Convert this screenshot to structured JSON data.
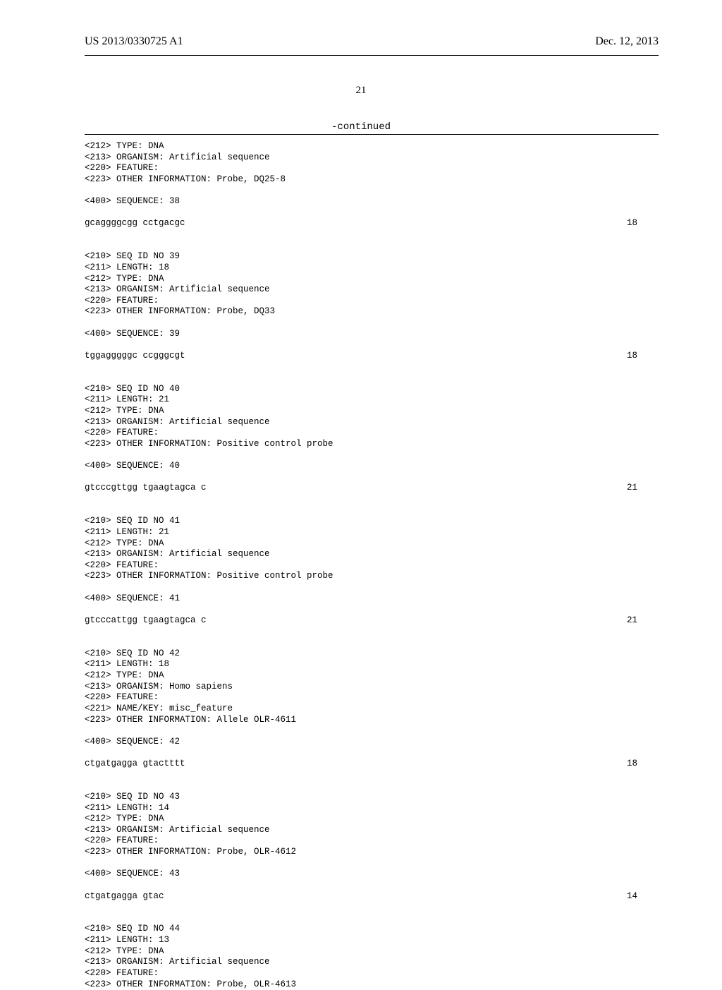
{
  "header": {
    "publication_number": "US 2013/0330725 A1",
    "publication_date": "Dec. 12, 2013"
  },
  "page_number": "21",
  "continued_label": "-continued",
  "entries": [
    {
      "hdr": [
        "<212> TYPE: DNA",
        "<213> ORGANISM: Artificial sequence",
        "<220> FEATURE:",
        "<223> OTHER INFORMATION: Probe, DQ25-8"
      ],
      "seq_label": "<400> SEQUENCE: 38",
      "seq": "gcaggggcgg cctgacgc",
      "len": "18"
    },
    {
      "hdr": [
        "<210> SEQ ID NO 39",
        "<211> LENGTH: 18",
        "<212> TYPE: DNA",
        "<213> ORGANISM: Artificial sequence",
        "<220> FEATURE:",
        "<223> OTHER INFORMATION: Probe, DQ33"
      ],
      "seq_label": "<400> SEQUENCE: 39",
      "seq": "tggagggggc ccgggcgt",
      "len": "18"
    },
    {
      "hdr": [
        "<210> SEQ ID NO 40",
        "<211> LENGTH: 21",
        "<212> TYPE: DNA",
        "<213> ORGANISM: Artificial sequence",
        "<220> FEATURE:",
        "<223> OTHER INFORMATION: Positive control probe"
      ],
      "seq_label": "<400> SEQUENCE: 40",
      "seq": "gtcccgttgg tgaagtagca c",
      "len": "21"
    },
    {
      "hdr": [
        "<210> SEQ ID NO 41",
        "<211> LENGTH: 21",
        "<212> TYPE: DNA",
        "<213> ORGANISM: Artificial sequence",
        "<220> FEATURE:",
        "<223> OTHER INFORMATION: Positive control probe"
      ],
      "seq_label": "<400> SEQUENCE: 41",
      "seq": "gtcccattgg tgaagtagca c",
      "len": "21"
    },
    {
      "hdr": [
        "<210> SEQ ID NO 42",
        "<211> LENGTH: 18",
        "<212> TYPE: DNA",
        "<213> ORGANISM: Homo sapiens",
        "<220> FEATURE:",
        "<221> NAME/KEY: misc_feature",
        "<223> OTHER INFORMATION: Allele OLR-4611"
      ],
      "seq_label": "<400> SEQUENCE: 42",
      "seq": "ctgatgagga gtactttt",
      "len": "18"
    },
    {
      "hdr": [
        "<210> SEQ ID NO 43",
        "<211> LENGTH: 14",
        "<212> TYPE: DNA",
        "<213> ORGANISM: Artificial sequence",
        "<220> FEATURE:",
        "<223> OTHER INFORMATION: Probe, OLR-4612"
      ],
      "seq_label": "<400> SEQUENCE: 43",
      "seq": "ctgatgagga gtac",
      "len": "14"
    },
    {
      "hdr": [
        "<210> SEQ ID NO 44",
        "<211> LENGTH: 13",
        "<212> TYPE: DNA",
        "<213> ORGANISM: Artificial sequence",
        "<220> FEATURE:",
        "<223> OTHER INFORMATION: Probe, OLR-4613"
      ],
      "seq_label": "",
      "seq": "",
      "len": ""
    }
  ]
}
